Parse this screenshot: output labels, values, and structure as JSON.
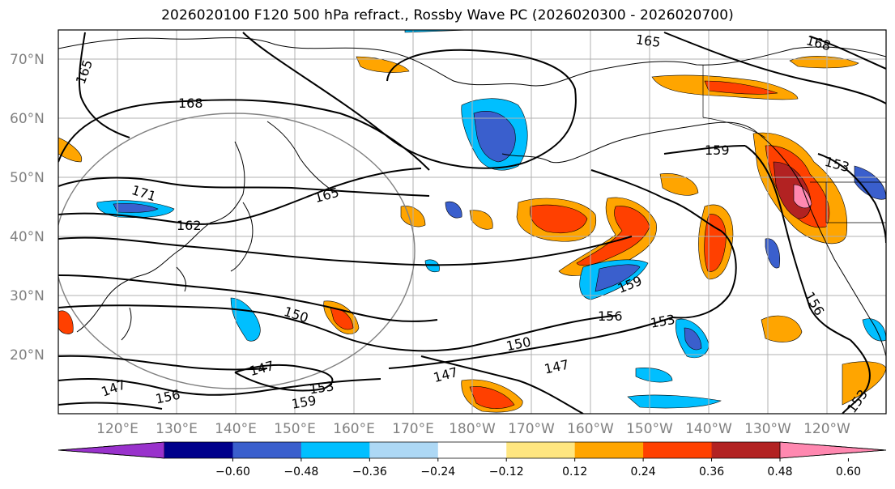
{
  "title": "2026020100 F120 500 hPa refract., Rossby Wave PC (2026020300 - 2026020700)",
  "map": {
    "lat_labels": [
      "70°N",
      "60°N",
      "50°N",
      "40°N",
      "30°N",
      "20°N"
    ],
    "lon_labels": [
      "120°E",
      "130°E",
      "140°E",
      "150°E",
      "160°E",
      "170°E",
      "180°W",
      "170°W",
      "160°W",
      "150°W",
      "140°W",
      "130°W",
      "120°W"
    ],
    "contour_labels": [
      {
        "text": "165"
      },
      {
        "text": "168"
      },
      {
        "text": "168"
      },
      {
        "text": "165"
      },
      {
        "text": "171"
      },
      {
        "text": "162"
      },
      {
        "text": "165"
      },
      {
        "text": "159"
      },
      {
        "text": "153"
      },
      {
        "text": "159"
      },
      {
        "text": "156"
      },
      {
        "text": "153"
      },
      {
        "text": "156"
      },
      {
        "text": "150"
      },
      {
        "text": "150"
      },
      {
        "text": "147"
      },
      {
        "text": "147"
      },
      {
        "text": "147"
      },
      {
        "text": "153"
      },
      {
        "text": "159"
      },
      {
        "text": "156"
      },
      {
        "text": "147"
      },
      {
        "text": "153"
      }
    ]
  },
  "colorbar": {
    "colors": [
      "#9932cc",
      "#00008b",
      "#3a5fcd",
      "#00bfff",
      "#add8f5",
      "#ffffff",
      "#ffe680",
      "#ffa500",
      "#ff4000",
      "#b22222",
      "#ff88b0"
    ],
    "ticks": [
      "−0.60",
      "−0.48",
      "−0.36",
      "−0.24",
      "−0.12",
      "0.12",
      "0.24",
      "0.36",
      "0.48",
      "0.60"
    ]
  }
}
